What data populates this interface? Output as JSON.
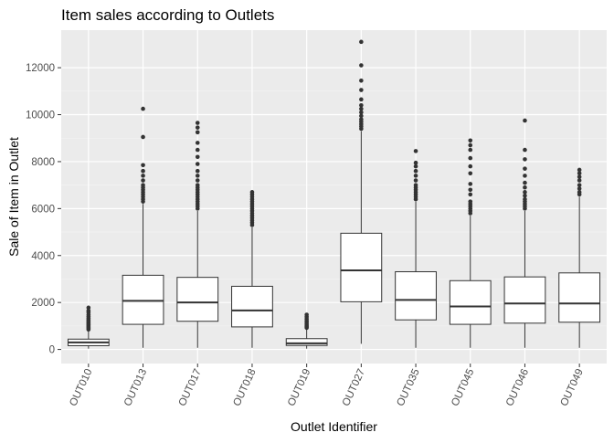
{
  "chart_data": {
    "type": "boxplot",
    "title": "Item sales according to Outlets",
    "xlabel": "Outlet Identifier",
    "ylabel": "Sale of Item in Outlet",
    "ylim": [
      -600,
      13600
    ],
    "yticks": [
      0,
      2000,
      4000,
      6000,
      8000,
      10000,
      12000
    ],
    "grid": true,
    "theme": {
      "panel": "#ebebeb",
      "grid_major": "#ffffff",
      "box_fill": "#ffffff",
      "line": "#333333",
      "outlier": "#333333"
    },
    "categories": [
      "OUT010",
      "OUT013",
      "OUT017",
      "OUT018",
      "OUT019",
      "OUT027",
      "OUT035",
      "OUT045",
      "OUT046",
      "OUT049"
    ],
    "boxes": [
      {
        "category": "OUT010",
        "whisker_low": 33,
        "q1": 160,
        "median": 300,
        "q3": 440,
        "whisker_high": 790,
        "outliers": [
          850,
          900,
          950,
          1000,
          1050,
          1100,
          1150,
          1200,
          1260,
          1320,
          1400,
          1480,
          1580,
          1650,
          1780
        ]
      },
      {
        "category": "OUT013",
        "whisker_low": 70,
        "q1": 1070,
        "median": 2070,
        "q3": 3160,
        "whisker_high": 6200,
        "outliers": [
          6300,
          6400,
          6500,
          6600,
          6700,
          6800,
          6900,
          7000,
          7200,
          7400,
          7600,
          7850,
          9050,
          10250
        ]
      },
      {
        "category": "OUT017",
        "whisker_low": 70,
        "q1": 1200,
        "median": 2000,
        "q3": 3070,
        "whisker_high": 5900,
        "outliers": [
          6000,
          6100,
          6200,
          6300,
          6400,
          6500,
          6600,
          6700,
          6800,
          6900,
          7000,
          7200,
          7400,
          7600,
          7900,
          8200,
          8500,
          8800,
          9250,
          9450,
          9650
        ]
      },
      {
        "category": "OUT018",
        "whisker_low": 70,
        "q1": 960,
        "median": 1660,
        "q3": 2690,
        "whisker_high": 5200,
        "outliers": [
          5300,
          5400,
          5500,
          5600,
          5700,
          5800,
          5900,
          6000,
          6100,
          6200,
          6300,
          6400,
          6500,
          6600,
          6700
        ]
      },
      {
        "category": "OUT019",
        "whisker_low": 33,
        "q1": 170,
        "median": 260,
        "q3": 460,
        "whisker_high": 880,
        "outliers": [
          920,
          970,
          1020,
          1080,
          1150,
          1220,
          1300,
          1390,
          1480
        ]
      },
      {
        "category": "OUT027",
        "whisker_low": 240,
        "q1": 2030,
        "median": 3370,
        "q3": 4950,
        "whisker_high": 9300,
        "outliers": [
          9400,
          9500,
          9600,
          9700,
          9800,
          9950,
          10100,
          10250,
          10400,
          10650,
          11050,
          11450,
          12100,
          13100
        ]
      },
      {
        "category": "OUT035",
        "whisker_low": 70,
        "q1": 1260,
        "median": 2110,
        "q3": 3310,
        "whisker_high": 6300,
        "outliers": [
          6400,
          6500,
          6600,
          6700,
          6800,
          6900,
          7000,
          7200,
          7400,
          7600,
          7800,
          7950,
          8450
        ]
      },
      {
        "category": "OUT045",
        "whisker_low": 70,
        "q1": 1070,
        "median": 1830,
        "q3": 2930,
        "whisker_high": 5700,
        "outliers": [
          5800,
          5900,
          6000,
          6100,
          6200,
          6300,
          6600,
          6800,
          7050,
          7500,
          7800,
          8150,
          8500,
          8700,
          8900
        ]
      },
      {
        "category": "OUT046",
        "whisker_low": 70,
        "q1": 1120,
        "median": 1960,
        "q3": 3090,
        "whisker_high": 5900,
        "outliers": [
          6000,
          6100,
          6200,
          6300,
          6400,
          6550,
          6700,
          6900,
          7100,
          7400,
          7700,
          8100,
          8500,
          9750
        ]
      },
      {
        "category": "OUT049",
        "whisker_low": 70,
        "q1": 1160,
        "median": 1960,
        "q3": 3260,
        "whisker_high": 6500,
        "outliers": [
          6600,
          6700,
          6850,
          7000,
          7200,
          7350,
          7500,
          7650
        ]
      }
    ]
  }
}
